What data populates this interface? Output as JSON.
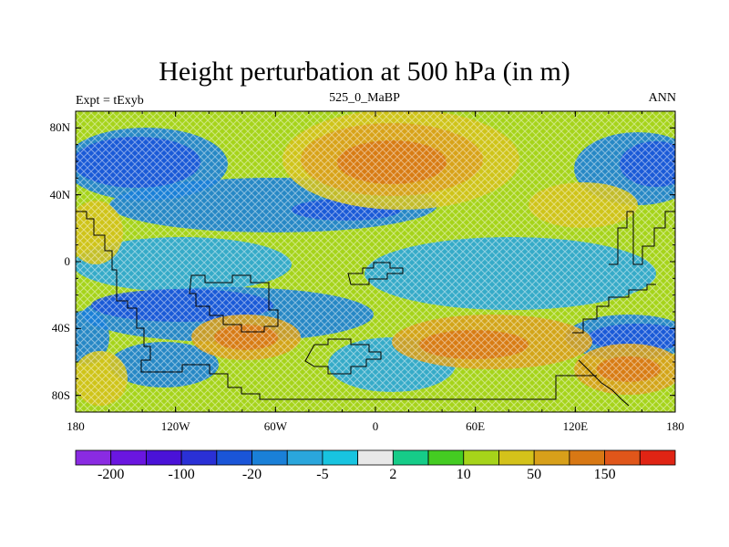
{
  "title": "Height perturbation at 500 hPa (in m)",
  "left_string": "Expt = tExyb",
  "center_string": "525_0_MaBP",
  "right_string": "ANN",
  "lat_ticks": [
    {
      "value": 80,
      "label": "80N"
    },
    {
      "value": 40,
      "label": "40N"
    },
    {
      "value": 0,
      "label": "0"
    },
    {
      "value": -40,
      "label": "40S"
    },
    {
      "value": -80,
      "label": "80S"
    }
  ],
  "lon_ticks": [
    {
      "value": -180,
      "label": "180"
    },
    {
      "value": -120,
      "label": "120W"
    },
    {
      "value": -60,
      "label": "60W"
    },
    {
      "value": 0,
      "label": "0"
    },
    {
      "value": 60,
      "label": "60E"
    },
    {
      "value": 120,
      "label": "120E"
    },
    {
      "value": 180,
      "label": "180"
    }
  ],
  "colorbar": {
    "colors": [
      "#8a2be2",
      "#6a16e0",
      "#4a12d8",
      "#2a30d6",
      "#1a55d8",
      "#1a80d8",
      "#2aa6dc",
      "#18c4e0",
      "#e8e8e8",
      "#16cc88",
      "#44cc22",
      "#a6d41a",
      "#d4c21a",
      "#d8a01a",
      "#d87814",
      "#e0561a",
      "#e02414"
    ],
    "labels": [
      {
        "after_box": 1,
        "text": "-200"
      },
      {
        "after_box": 3,
        "text": "-100"
      },
      {
        "after_box": 5,
        "text": "-20"
      },
      {
        "after_box": 7,
        "text": "-5"
      },
      {
        "after_box": 9,
        "text": "2"
      },
      {
        "after_box": 11,
        "text": "10"
      },
      {
        "after_box": 13,
        "text": "50"
      },
      {
        "after_box": 15,
        "text": "150"
      }
    ]
  },
  "field_colors": {
    "strong_neg": "#1a55d8",
    "neg": "#1a80d8",
    "weak_neg": "#2aa6dc",
    "neutral": "#a6d41a",
    "weak_pos": "#d4c21a",
    "pos": "#d8a01a",
    "strong_pos": "#d87814"
  }
}
